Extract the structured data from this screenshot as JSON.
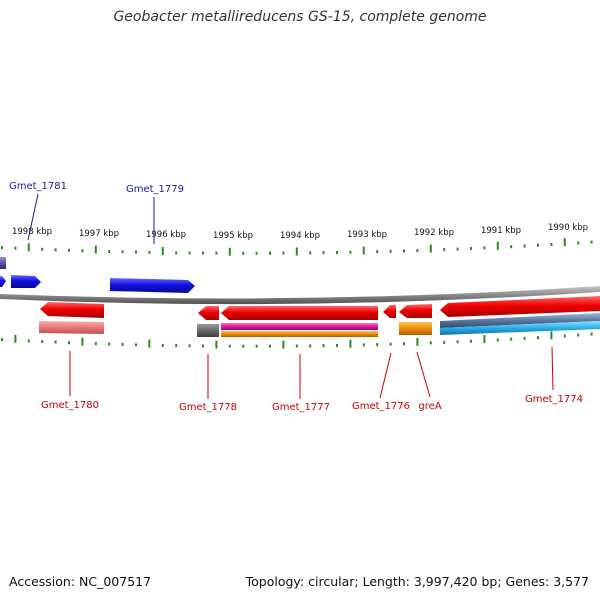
{
  "title": "Geobacter metallireducens GS-15, complete genome",
  "footer": {
    "accession": "Accession: NC_007517",
    "summary": "Topology: circular; Length: 3,997,420 bp; Genes: 3,577"
  },
  "ruler": {
    "ticks": [
      "1998 kbp",
      "1997 kbp",
      "1996 kbp",
      "1995 kbp",
      "1994 kbp",
      "1993 kbp",
      "1992 kbp",
      "1991 kbp",
      "1990 kbp"
    ],
    "tick_color": "#2e8b22"
  },
  "genes": [
    {
      "label": "Gmet_1781",
      "color": "#1a1aa0"
    },
    {
      "label": "Gmet_1779",
      "color": "#1a1aa0"
    },
    {
      "label": "Gmet_1780",
      "color": "#cc0000"
    },
    {
      "label": "Gmet_1778",
      "color": "#cc0000"
    },
    {
      "label": "Gmet_1777",
      "color": "#cc0000"
    },
    {
      "label": "Gmet_1776",
      "color": "#cc0000"
    },
    {
      "label": "greA",
      "color": "#cc0000"
    },
    {
      "label": "Gmet_1774",
      "color": "#cc0000"
    }
  ],
  "colors": {
    "forward_cds": "#1010e0",
    "reverse_cds": "#ee0000",
    "backbone": "#8a8a8a",
    "pink_feature": "#e0199a",
    "orange_feature": "#ee8a00",
    "light_red_feature": "#e87878",
    "grey_feature": "#6a6a6a",
    "cyan_feature": "#2ab0e8",
    "slate_feature": "#5878a0"
  }
}
